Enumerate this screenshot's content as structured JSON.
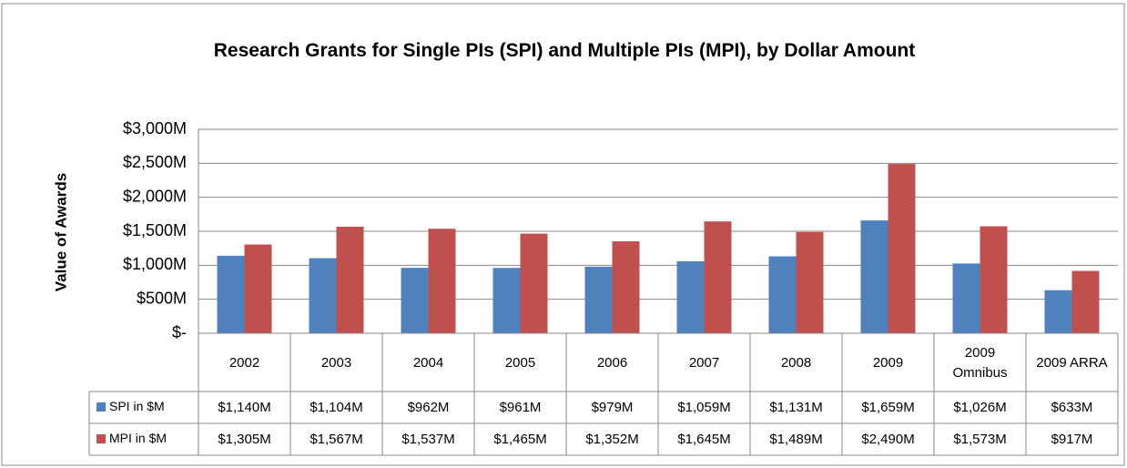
{
  "chart_data": {
    "type": "bar",
    "title": "Research Grants for Single PIs (SPI) and Multiple PIs (MPI), by Dollar Amount",
    "y_label": "Value of Awards",
    "categories": [
      "2002",
      "2003",
      "2004",
      "2005",
      "2006",
      "2007",
      "2008",
      "2009",
      "2009 Omnibus",
      "2009 ARRA"
    ],
    "series": [
      {
        "name": "SPI in $M",
        "color": "#4f81bd",
        "values": [
          1140,
          1104,
          962,
          961,
          979,
          1059,
          1131,
          1659,
          1026,
          633
        ],
        "value_labels": [
          "$1,140M",
          "$1,104M",
          "$962M",
          "$961M",
          "$979M",
          "$1,059M",
          "$1,131M",
          "$1,659M",
          "$1,026M",
          "$633M"
        ]
      },
      {
        "name": "MPI in $M",
        "color": "#c0504d",
        "values": [
          1305,
          1567,
          1537,
          1465,
          1352,
          1645,
          1489,
          2490,
          1573,
          917
        ],
        "value_labels": [
          "$1,305M",
          "$1,567M",
          "$1,537M",
          "$1,465M",
          "$1,352M",
          "$1,645M",
          "$1,489M",
          "$2,490M",
          "$1,573M",
          "$917M"
        ]
      }
    ],
    "ylim": [
      0,
      3000
    ],
    "yticks": [
      {
        "value": 0,
        "label": "$-"
      },
      {
        "value": 500,
        "label": "$500M"
      },
      {
        "value": 1000,
        "label": "$1,000M"
      },
      {
        "value": 1500,
        "label": "$1,500M"
      },
      {
        "value": 2000,
        "label": "$2,000M"
      },
      {
        "value": 2500,
        "label": "$2,500M"
      },
      {
        "value": 3000,
        "label": "$3,000M"
      }
    ],
    "grid": true
  }
}
